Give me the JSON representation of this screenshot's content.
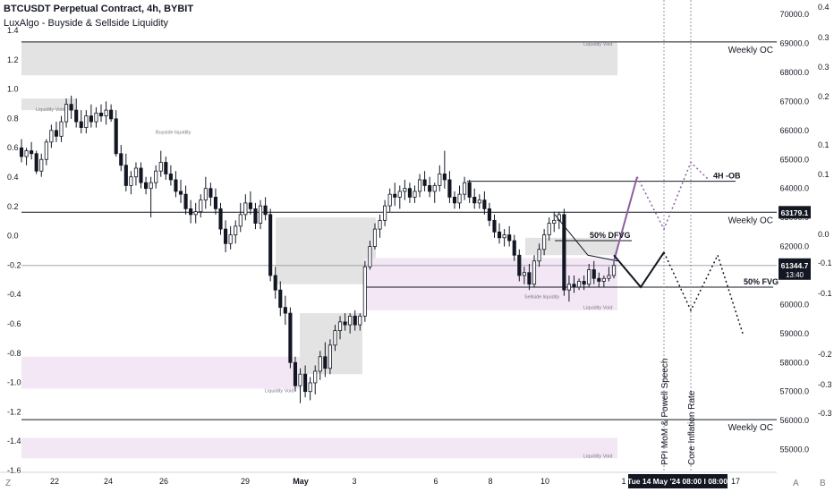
{
  "header": {
    "title": "BTCUSDT Perpetual Contract, 4h, BYBIT",
    "indicator": "LuxAlgo - Buyside & Sellside Liquidity"
  },
  "colors": {
    "up": "#ffffff",
    "down": "#131722",
    "wick": "#131722",
    "void_gray": "#e3e3e3",
    "void_pink": "#f3e6f5",
    "projection_purple": "#8e5ea2",
    "last_price_tag": "#131722",
    "level_tag": "#131722",
    "date_tag": "#131722"
  },
  "chart_data": {
    "type": "candlestick",
    "symbol": "BTCUSDT Perpetual Contract",
    "timeframe": "4h",
    "exchange": "BYBIT",
    "right_axis": {
      "ticks": [
        "70000.0",
        "69000.0",
        "68000.0",
        "67000.0",
        "66000.0",
        "65000.0",
        "64000.0",
        "63000.0",
        "62000.0",
        "61000.0",
        "60000.0",
        "59000.0",
        "58000.0",
        "57000.0",
        "56000.0",
        "55000.0"
      ],
      "range": [
        54400,
        70250
      ]
    },
    "left_axis": {
      "ticks": [
        "1.4",
        "1.2",
        "1.0",
        "0.8",
        "0.6",
        "0.4",
        "0.2",
        "0.0",
        "-0.2",
        "-0.4",
        "-0.6",
        "-0.8",
        "-1.0",
        "-1.2",
        "-1.4",
        "-1.6"
      ]
    },
    "osc_axis": {
      "ticks": [
        "0.4",
        "0.3",
        "0.3",
        "0.2",
        "0.1",
        "0.1",
        "0.0",
        "-0.1",
        "-0.1",
        "-0.2",
        "-0.3",
        "-0.3"
      ]
    },
    "x_axis": {
      "ticks": [
        "22",
        "24",
        "26",
        "29",
        "May",
        "3",
        "6",
        "8",
        "10",
        "17"
      ],
      "range": [
        "Apr 20",
        "May 17"
      ],
      "last_label": "1"
    },
    "candles": [
      {
        "o": 65400,
        "h": 65700,
        "l": 64900,
        "c": 65100
      },
      {
        "o": 65100,
        "h": 65400,
        "l": 64800,
        "c": 65300
      },
      {
        "o": 65300,
        "h": 65600,
        "l": 65000,
        "c": 65200
      },
      {
        "o": 65200,
        "h": 65300,
        "l": 64500,
        "c": 64600
      },
      {
        "o": 64600,
        "h": 65200,
        "l": 64400,
        "c": 65000
      },
      {
        "o": 65000,
        "h": 65700,
        "l": 64800,
        "c": 65600
      },
      {
        "o": 65600,
        "h": 66200,
        "l": 65400,
        "c": 66000
      },
      {
        "o": 66000,
        "h": 66300,
        "l": 65600,
        "c": 65800
      },
      {
        "o": 65800,
        "h": 66500,
        "l": 65600,
        "c": 66300
      },
      {
        "o": 66300,
        "h": 67100,
        "l": 66100,
        "c": 66900
      },
      {
        "o": 66900,
        "h": 67200,
        "l": 66400,
        "c": 66700
      },
      {
        "o": 66700,
        "h": 67100,
        "l": 66100,
        "c": 66300
      },
      {
        "o": 66300,
        "h": 66700,
        "l": 65900,
        "c": 66100
      },
      {
        "o": 66100,
        "h": 66700,
        "l": 65900,
        "c": 66500
      },
      {
        "o": 66500,
        "h": 66900,
        "l": 66100,
        "c": 66300
      },
      {
        "o": 66300,
        "h": 66800,
        "l": 66100,
        "c": 66600
      },
      {
        "o": 66600,
        "h": 66900,
        "l": 66300,
        "c": 66500
      },
      {
        "o": 66500,
        "h": 67000,
        "l": 66200,
        "c": 66700
      },
      {
        "o": 66700,
        "h": 66900,
        "l": 66300,
        "c": 66400
      },
      {
        "o": 66400,
        "h": 66700,
        "l": 65100,
        "c": 65200
      },
      {
        "o": 65200,
        "h": 65500,
        "l": 64600,
        "c": 64800
      },
      {
        "o": 64800,
        "h": 65200,
        "l": 63900,
        "c": 64100
      },
      {
        "o": 64100,
        "h": 64600,
        "l": 63800,
        "c": 64400
      },
      {
        "o": 64400,
        "h": 64900,
        "l": 64100,
        "c": 64700
      },
      {
        "o": 64700,
        "h": 64900,
        "l": 64000,
        "c": 64200
      },
      {
        "o": 64200,
        "h": 64400,
        "l": 63800,
        "c": 64000
      },
      {
        "o": 64000,
        "h": 64400,
        "l": 63000,
        "c": 64200
      },
      {
        "o": 64200,
        "h": 64800,
        "l": 64000,
        "c": 64600
      },
      {
        "o": 64600,
        "h": 65300,
        "l": 64400,
        "c": 64900
      },
      {
        "o": 64900,
        "h": 65100,
        "l": 64300,
        "c": 64500
      },
      {
        "o": 64500,
        "h": 64800,
        "l": 64100,
        "c": 64300
      },
      {
        "o": 64300,
        "h": 64600,
        "l": 63700,
        "c": 63900
      },
      {
        "o": 63900,
        "h": 64300,
        "l": 63500,
        "c": 63800
      },
      {
        "o": 63800,
        "h": 64100,
        "l": 63100,
        "c": 63300
      },
      {
        "o": 63300,
        "h": 63600,
        "l": 62800,
        "c": 63100
      },
      {
        "o": 63100,
        "h": 63500,
        "l": 62800,
        "c": 63200
      },
      {
        "o": 63200,
        "h": 63800,
        "l": 63000,
        "c": 63600
      },
      {
        "o": 63600,
        "h": 64400,
        "l": 63300,
        "c": 64000
      },
      {
        "o": 64000,
        "h": 64200,
        "l": 63400,
        "c": 63700
      },
      {
        "o": 63700,
        "h": 64000,
        "l": 63100,
        "c": 63300
      },
      {
        "o": 63300,
        "h": 63500,
        "l": 62400,
        "c": 62600
      },
      {
        "o": 62600,
        "h": 62900,
        "l": 61800,
        "c": 62100
      },
      {
        "o": 62100,
        "h": 62700,
        "l": 61900,
        "c": 62400
      },
      {
        "o": 62400,
        "h": 62900,
        "l": 62100,
        "c": 62700
      },
      {
        "o": 62700,
        "h": 63500,
        "l": 62500,
        "c": 63100
      },
      {
        "o": 63100,
        "h": 63800,
        "l": 62900,
        "c": 63500
      },
      {
        "o": 63500,
        "h": 63900,
        "l": 63100,
        "c": 63300
      },
      {
        "o": 63300,
        "h": 63500,
        "l": 62600,
        "c": 62800
      },
      {
        "o": 62800,
        "h": 63600,
        "l": 62600,
        "c": 63400
      },
      {
        "o": 63400,
        "h": 63700,
        "l": 62900,
        "c": 63100
      },
      {
        "o": 63100,
        "h": 63300,
        "l": 60800,
        "c": 61000
      },
      {
        "o": 61000,
        "h": 61300,
        "l": 60200,
        "c": 60500
      },
      {
        "o": 60500,
        "h": 60800,
        "l": 59600,
        "c": 59900
      },
      {
        "o": 59900,
        "h": 60300,
        "l": 59300,
        "c": 59700
      },
      {
        "o": 59700,
        "h": 59900,
        "l": 57800,
        "c": 58000
      },
      {
        "o": 58000,
        "h": 58200,
        "l": 57000,
        "c": 57200
      },
      {
        "o": 57200,
        "h": 57800,
        "l": 56600,
        "c": 57600
      },
      {
        "o": 57600,
        "h": 57900,
        "l": 56800,
        "c": 57000
      },
      {
        "o": 57000,
        "h": 57500,
        "l": 56700,
        "c": 57300
      },
      {
        "o": 57300,
        "h": 57900,
        "l": 56900,
        "c": 57700
      },
      {
        "o": 57700,
        "h": 58400,
        "l": 57400,
        "c": 58200
      },
      {
        "o": 58200,
        "h": 58700,
        "l": 57500,
        "c": 57800
      },
      {
        "o": 57800,
        "h": 58800,
        "l": 57600,
        "c": 58600
      },
      {
        "o": 58600,
        "h": 59300,
        "l": 58400,
        "c": 59100
      },
      {
        "o": 59100,
        "h": 59600,
        "l": 58800,
        "c": 59400
      },
      {
        "o": 59400,
        "h": 59700,
        "l": 59100,
        "c": 59300
      },
      {
        "o": 59300,
        "h": 59700,
        "l": 59000,
        "c": 59600
      },
      {
        "o": 59600,
        "h": 59800,
        "l": 59100,
        "c": 59300
      },
      {
        "o": 59300,
        "h": 59700,
        "l": 59100,
        "c": 59600
      },
      {
        "o": 59600,
        "h": 61500,
        "l": 59400,
        "c": 61300
      },
      {
        "o": 61300,
        "h": 62200,
        "l": 61200,
        "c": 62000
      },
      {
        "o": 62000,
        "h": 62800,
        "l": 61900,
        "c": 62600
      },
      {
        "o": 62600,
        "h": 63100,
        "l": 62300,
        "c": 62900
      },
      {
        "o": 62900,
        "h": 63600,
        "l": 62700,
        "c": 63400
      },
      {
        "o": 63400,
        "h": 64000,
        "l": 63200,
        "c": 63800
      },
      {
        "o": 63800,
        "h": 64200,
        "l": 63400,
        "c": 63700
      },
      {
        "o": 63700,
        "h": 64100,
        "l": 63300,
        "c": 63900
      },
      {
        "o": 63900,
        "h": 64300,
        "l": 63600,
        "c": 64000
      },
      {
        "o": 64000,
        "h": 64200,
        "l": 63500,
        "c": 63700
      },
      {
        "o": 63700,
        "h": 64100,
        "l": 63500,
        "c": 63900
      },
      {
        "o": 63900,
        "h": 64500,
        "l": 63700,
        "c": 64300
      },
      {
        "o": 64300,
        "h": 64600,
        "l": 63900,
        "c": 64100
      },
      {
        "o": 64100,
        "h": 64400,
        "l": 63700,
        "c": 63900
      },
      {
        "o": 63900,
        "h": 64200,
        "l": 63500,
        "c": 64100
      },
      {
        "o": 64100,
        "h": 64800,
        "l": 63900,
        "c": 64500
      },
      {
        "o": 64500,
        "h": 65300,
        "l": 64000,
        "c": 64300
      },
      {
        "o": 64300,
        "h": 64600,
        "l": 63500,
        "c": 63700
      },
      {
        "o": 63700,
        "h": 63900,
        "l": 63300,
        "c": 63500
      },
      {
        "o": 63500,
        "h": 64100,
        "l": 63300,
        "c": 63800
      },
      {
        "o": 63800,
        "h": 64400,
        "l": 63600,
        "c": 64200
      },
      {
        "o": 64200,
        "h": 64300,
        "l": 63500,
        "c": 63700
      },
      {
        "o": 63700,
        "h": 64000,
        "l": 63300,
        "c": 63500
      },
      {
        "o": 63500,
        "h": 63800,
        "l": 63300,
        "c": 63600
      },
      {
        "o": 63600,
        "h": 63900,
        "l": 63100,
        "c": 63300
      },
      {
        "o": 63300,
        "h": 63500,
        "l": 62700,
        "c": 62900
      },
      {
        "o": 62900,
        "h": 63100,
        "l": 62300,
        "c": 62500
      },
      {
        "o": 62500,
        "h": 62800,
        "l": 62100,
        "c": 62300
      },
      {
        "o": 62300,
        "h": 62600,
        "l": 62000,
        "c": 62400
      },
      {
        "o": 62400,
        "h": 62700,
        "l": 62000,
        "c": 62200
      },
      {
        "o": 62200,
        "h": 62400,
        "l": 61500,
        "c": 61700
      },
      {
        "o": 61700,
        "h": 61900,
        "l": 60800,
        "c": 61000
      },
      {
        "o": 61000,
        "h": 61300,
        "l": 60700,
        "c": 61100
      },
      {
        "o": 61100,
        "h": 61400,
        "l": 60500,
        "c": 60700
      },
      {
        "o": 60700,
        "h": 61700,
        "l": 60600,
        "c": 61500
      },
      {
        "o": 61500,
        "h": 62100,
        "l": 61300,
        "c": 61900
      },
      {
        "o": 61900,
        "h": 62600,
        "l": 61700,
        "c": 62400
      },
      {
        "o": 62400,
        "h": 63000,
        "l": 62200,
        "c": 62800
      },
      {
        "o": 62800,
        "h": 63200,
        "l": 62500,
        "c": 62900
      },
      {
        "o": 62900,
        "h": 63200,
        "l": 62600,
        "c": 63100
      },
      {
        "o": 63100,
        "h": 63300,
        "l": 60300,
        "c": 60500
      },
      {
        "o": 60500,
        "h": 61000,
        "l": 60100,
        "c": 60700
      },
      {
        "o": 60700,
        "h": 61000,
        "l": 60400,
        "c": 60600
      },
      {
        "o": 60600,
        "h": 60900,
        "l": 60500,
        "c": 60800
      },
      {
        "o": 60800,
        "h": 61000,
        "l": 60500,
        "c": 60700
      },
      {
        "o": 60700,
        "h": 61400,
        "l": 60600,
        "c": 61200
      },
      {
        "o": 61200,
        "h": 61500,
        "l": 60700,
        "c": 60900
      },
      {
        "o": 60900,
        "h": 61100,
        "l": 60600,
        "c": 60800
      },
      {
        "o": 60800,
        "h": 61000,
        "l": 60600,
        "c": 60900
      },
      {
        "o": 60900,
        "h": 61300,
        "l": 60800,
        "c": 61000
      },
      {
        "o": 61000,
        "h": 61500,
        "l": 60900,
        "c": 61344.7
      }
    ],
    "levels": [
      {
        "label": "Weekly OC",
        "value": 69050
      },
      {
        "label": "Weekly OC",
        "value": 63179.1
      },
      {
        "label": "Weekly OC",
        "value": 56030
      }
    ],
    "annotations": [
      {
        "text": "4H -OB",
        "value": 64250
      },
      {
        "text": "50% DFVG",
        "value": 62200
      },
      {
        "text": "50% FVG",
        "value": 60600
      }
    ],
    "liquidity_labels": [
      {
        "text": "Liquidity Void",
        "value": 69050
      },
      {
        "text": "Liquidity Void",
        "value": 66800
      },
      {
        "text": "Buyside liquidity",
        "value": 65700
      },
      {
        "text": "Liquidity Void",
        "value": 57100
      },
      {
        "text": "Sellside liquidity",
        "value": 60400
      },
      {
        "text": "Liquidity Void",
        "value": 59900
      },
      {
        "text": "Liquidity Void",
        "value": 54850
      }
    ],
    "event_lines": [
      {
        "text": "PPI MoM & Powell Speech"
      },
      {
        "text": "Core Inflation Rate"
      }
    ],
    "price_tags": {
      "weekly_level": "63179.1",
      "last_price": "61344.7",
      "countdown": "13:40"
    },
    "date_tag": "Tue 14 May '24   08:00   I   08:00"
  },
  "footer": {
    "left_corner": "Z",
    "right_corner_a": "A",
    "right_corner_b": "B"
  }
}
